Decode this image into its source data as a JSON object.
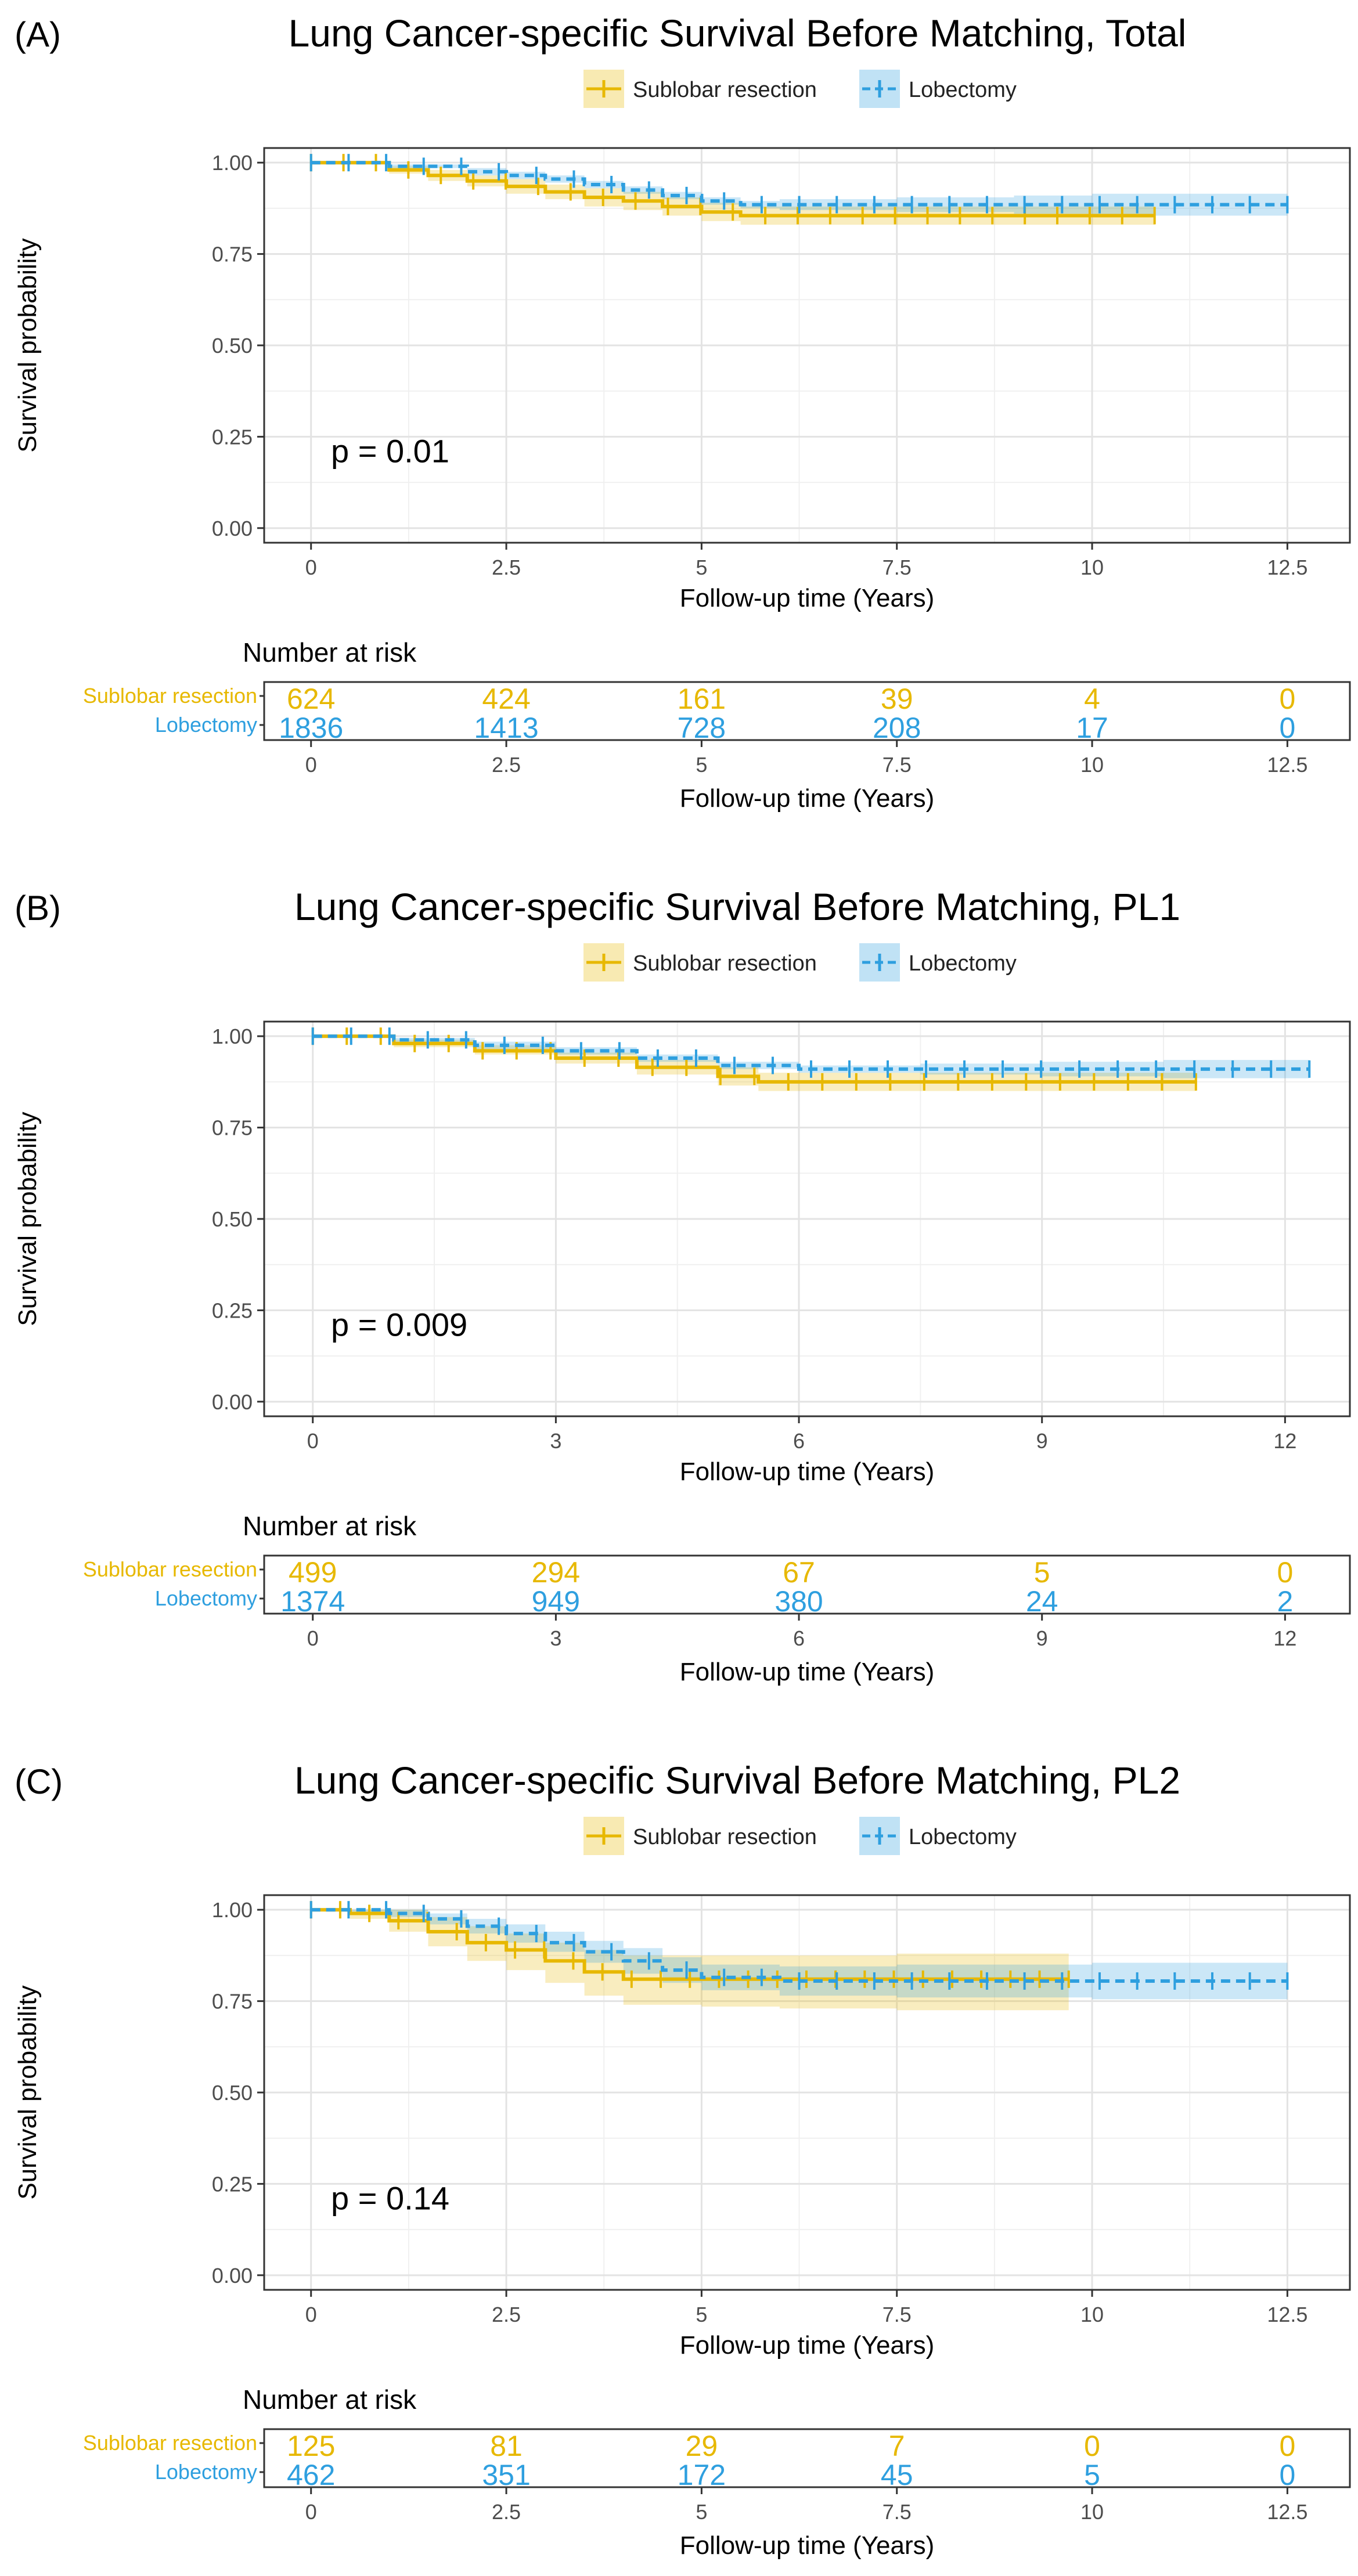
{
  "chart_data": [
    {
      "type": "line",
      "panel_label": "(A)",
      "title": "Lung Cancer-specific Survival Before Matching, Total",
      "xlabel": "Follow-up time (Years)",
      "ylabel": "Survival probability",
      "xlim": [
        -0.6,
        13.3
      ],
      "ylim": [
        -0.04,
        1.04
      ],
      "x_ticks": [
        0,
        2.5,
        5,
        7.5,
        10,
        12.5
      ],
      "x_tick_labels": [
        "0",
        "2.5",
        "5",
        "7.5",
        "10",
        "12.5"
      ],
      "y_ticks": [
        0,
        0.25,
        0.5,
        0.75,
        1.0
      ],
      "y_tick_labels": [
        "0.00",
        "0.25",
        "0.50",
        "0.75",
        "1.00"
      ],
      "grid": true,
      "legend": [
        "Sublobar resection",
        "Lobectomy"
      ],
      "legend_position": "top-center",
      "p_value_text": "p = 0.01",
      "series": [
        {
          "name": "Sublobar resection",
          "color": "#E7B800",
          "dashed": false,
          "x": [
            0,
            1.0,
            1.5,
            2.0,
            2.5,
            3.0,
            3.5,
            4.0,
            4.5,
            5.0,
            5.5,
            6.0,
            7.5,
            9.0,
            10.8
          ],
          "y": [
            1.0,
            0.98,
            0.965,
            0.95,
            0.935,
            0.92,
            0.905,
            0.895,
            0.88,
            0.865,
            0.855,
            0.855,
            0.855,
            0.855,
            0.855
          ],
          "ci_low": [
            1.0,
            0.97,
            0.95,
            0.935,
            0.915,
            0.9,
            0.88,
            0.87,
            0.855,
            0.84,
            0.83,
            0.83,
            0.83,
            0.83,
            0.83
          ],
          "ci_high": [
            1.0,
            0.99,
            0.98,
            0.965,
            0.955,
            0.94,
            0.93,
            0.92,
            0.905,
            0.89,
            0.88,
            0.88,
            0.88,
            0.88,
            0.88
          ]
        },
        {
          "name": "Lobectomy",
          "color": "#2E9FDF",
          "dashed": true,
          "x": [
            0,
            1.0,
            2.0,
            2.5,
            3.0,
            3.5,
            4.0,
            4.5,
            5.0,
            5.5,
            6.0,
            7.5,
            9.0,
            10.0,
            12.5
          ],
          "y": [
            1.0,
            0.99,
            0.975,
            0.965,
            0.955,
            0.94,
            0.925,
            0.91,
            0.895,
            0.885,
            0.885,
            0.885,
            0.885,
            0.885,
            0.885
          ],
          "ci_low": [
            1.0,
            0.985,
            0.965,
            0.955,
            0.945,
            0.93,
            0.915,
            0.9,
            0.885,
            0.875,
            0.87,
            0.865,
            0.86,
            0.855,
            0.85
          ],
          "ci_high": [
            1.0,
            0.995,
            0.985,
            0.975,
            0.965,
            0.95,
            0.935,
            0.92,
            0.905,
            0.895,
            0.9,
            0.905,
            0.91,
            0.915,
            0.92
          ]
        }
      ],
      "risk_table": {
        "title": "Number at risk",
        "xlabel": "Follow-up time (Years)",
        "rows": [
          {
            "name": "Sublobar resection",
            "color": "#E7B800",
            "values": [
              "624",
              "424",
              "161",
              "39",
              "4",
              "0"
            ]
          },
          {
            "name": "Lobectomy",
            "color": "#2E9FDF",
            "values": [
              "1836",
              "1413",
              "728",
              "208",
              "17",
              "0"
            ]
          }
        ]
      }
    },
    {
      "type": "line",
      "panel_label": "(B)",
      "title": "Lung Cancer-specific Survival Before Matching, PL1",
      "xlabel": "Follow-up time (Years)",
      "ylabel": "Survival probability",
      "xlim": [
        -0.6,
        12.8
      ],
      "ylim": [
        -0.04,
        1.04
      ],
      "x_ticks": [
        0,
        3,
        6,
        9,
        12
      ],
      "x_tick_labels": [
        "0",
        "3",
        "6",
        "9",
        "12"
      ],
      "y_ticks": [
        0,
        0.25,
        0.5,
        0.75,
        1.0
      ],
      "y_tick_labels": [
        "0.00",
        "0.25",
        "0.50",
        "0.75",
        "1.00"
      ],
      "grid": true,
      "legend": [
        "Sublobar resection",
        "Lobectomy"
      ],
      "legend_position": "top-center",
      "p_value_text": "p = 0.009",
      "series": [
        {
          "name": "Sublobar resection",
          "color": "#E7B800",
          "dashed": false,
          "x": [
            0,
            1.0,
            2.0,
            3.0,
            4.0,
            5.0,
            5.5,
            6.0,
            7.5,
            9.0,
            10.9
          ],
          "y": [
            1.0,
            0.98,
            0.96,
            0.94,
            0.915,
            0.89,
            0.875,
            0.875,
            0.875,
            0.875,
            0.875
          ],
          "ci_low": [
            1.0,
            0.97,
            0.95,
            0.925,
            0.895,
            0.865,
            0.85,
            0.85,
            0.85,
            0.85,
            0.85
          ],
          "ci_high": [
            1.0,
            0.99,
            0.975,
            0.955,
            0.935,
            0.915,
            0.9,
            0.9,
            0.9,
            0.9,
            0.9
          ]
        },
        {
          "name": "Lobectomy",
          "color": "#2E9FDF",
          "dashed": true,
          "x": [
            0,
            1.0,
            2.0,
            3.0,
            4.0,
            5.0,
            6.0,
            7.5,
            9.0,
            10.5,
            12.3
          ],
          "y": [
            1.0,
            0.99,
            0.975,
            0.96,
            0.94,
            0.92,
            0.91,
            0.91,
            0.91,
            0.91,
            0.91
          ],
          "ci_low": [
            1.0,
            0.985,
            0.965,
            0.95,
            0.93,
            0.91,
            0.9,
            0.895,
            0.89,
            0.885,
            0.88
          ],
          "ci_high": [
            1.0,
            0.995,
            0.985,
            0.97,
            0.95,
            0.93,
            0.92,
            0.925,
            0.93,
            0.935,
            0.94
          ]
        }
      ],
      "risk_table": {
        "title": "Number at risk",
        "xlabel": "Follow-up time (Years)",
        "rows": [
          {
            "name": "Sublobar resection",
            "color": "#E7B800",
            "values": [
              "499",
              "294",
              "67",
              "5",
              "0"
            ]
          },
          {
            "name": "Lobectomy",
            "color": "#2E9FDF",
            "values": [
              "1374",
              "949",
              "380",
              "24",
              "2"
            ]
          }
        ]
      }
    },
    {
      "type": "line",
      "panel_label": "(C)",
      "title": "Lung Cancer-specific Survival Before Matching, PL2",
      "xlabel": "Follow-up time (Years)",
      "ylabel": "Survival probability",
      "xlim": [
        -0.6,
        13.3
      ],
      "ylim": [
        -0.04,
        1.04
      ],
      "x_ticks": [
        0,
        2.5,
        5,
        7.5,
        10,
        12.5
      ],
      "x_tick_labels": [
        "0",
        "2.5",
        "5",
        "7.5",
        "10",
        "12.5"
      ],
      "y_ticks": [
        0,
        0.25,
        0.5,
        0.75,
        1.0
      ],
      "y_tick_labels": [
        "0.00",
        "0.25",
        "0.50",
        "0.75",
        "1.00"
      ],
      "grid": true,
      "legend": [
        "Sublobar resection",
        "Lobectomy"
      ],
      "legend_position": "top-center",
      "p_value_text": "p = 0.14",
      "series": [
        {
          "name": "Sublobar resection",
          "color": "#E7B800",
          "dashed": false,
          "x": [
            0,
            0.5,
            1.0,
            1.5,
            2.0,
            2.5,
            3.0,
            3.5,
            4.0,
            5.0,
            6.0,
            7.5,
            9.7
          ],
          "y": [
            1.0,
            0.99,
            0.97,
            0.94,
            0.91,
            0.89,
            0.86,
            0.83,
            0.81,
            0.81,
            0.81,
            0.81,
            0.81
          ],
          "ci_low": [
            1.0,
            0.975,
            0.94,
            0.9,
            0.86,
            0.835,
            0.8,
            0.765,
            0.74,
            0.735,
            0.73,
            0.725,
            0.72
          ],
          "ci_high": [
            1.0,
            1.0,
            1.0,
            0.98,
            0.955,
            0.935,
            0.91,
            0.89,
            0.875,
            0.875,
            0.875,
            0.88,
            0.88
          ]
        },
        {
          "name": "Lobectomy",
          "color": "#2E9FDF",
          "dashed": true,
          "x": [
            0,
            0.5,
            1.0,
            1.5,
            2.0,
            2.5,
            3.0,
            3.5,
            4.0,
            4.5,
            5.0,
            6.0,
            7.5,
            10.0,
            12.5
          ],
          "y": [
            1.0,
            1.0,
            0.99,
            0.975,
            0.955,
            0.935,
            0.91,
            0.885,
            0.86,
            0.835,
            0.815,
            0.805,
            0.805,
            0.805,
            0.805
          ],
          "ci_low": [
            1.0,
            0.995,
            0.98,
            0.96,
            0.935,
            0.91,
            0.885,
            0.855,
            0.825,
            0.8,
            0.78,
            0.765,
            0.76,
            0.755,
            0.745
          ],
          "ci_high": [
            1.0,
            1.0,
            1.0,
            0.99,
            0.975,
            0.96,
            0.94,
            0.915,
            0.895,
            0.87,
            0.85,
            0.845,
            0.85,
            0.855,
            0.865
          ]
        }
      ],
      "risk_table": {
        "title": "Number at risk",
        "xlabel": "Follow-up time (Years)",
        "rows": [
          {
            "name": "Sublobar resection",
            "color": "#E7B800",
            "values": [
              "125",
              "81",
              "29",
              "7",
              "0",
              "0"
            ]
          },
          {
            "name": "Lobectomy",
            "color": "#2E9FDF",
            "values": [
              "462",
              "351",
              "172",
              "45",
              "5",
              "0"
            ]
          }
        ]
      }
    }
  ]
}
